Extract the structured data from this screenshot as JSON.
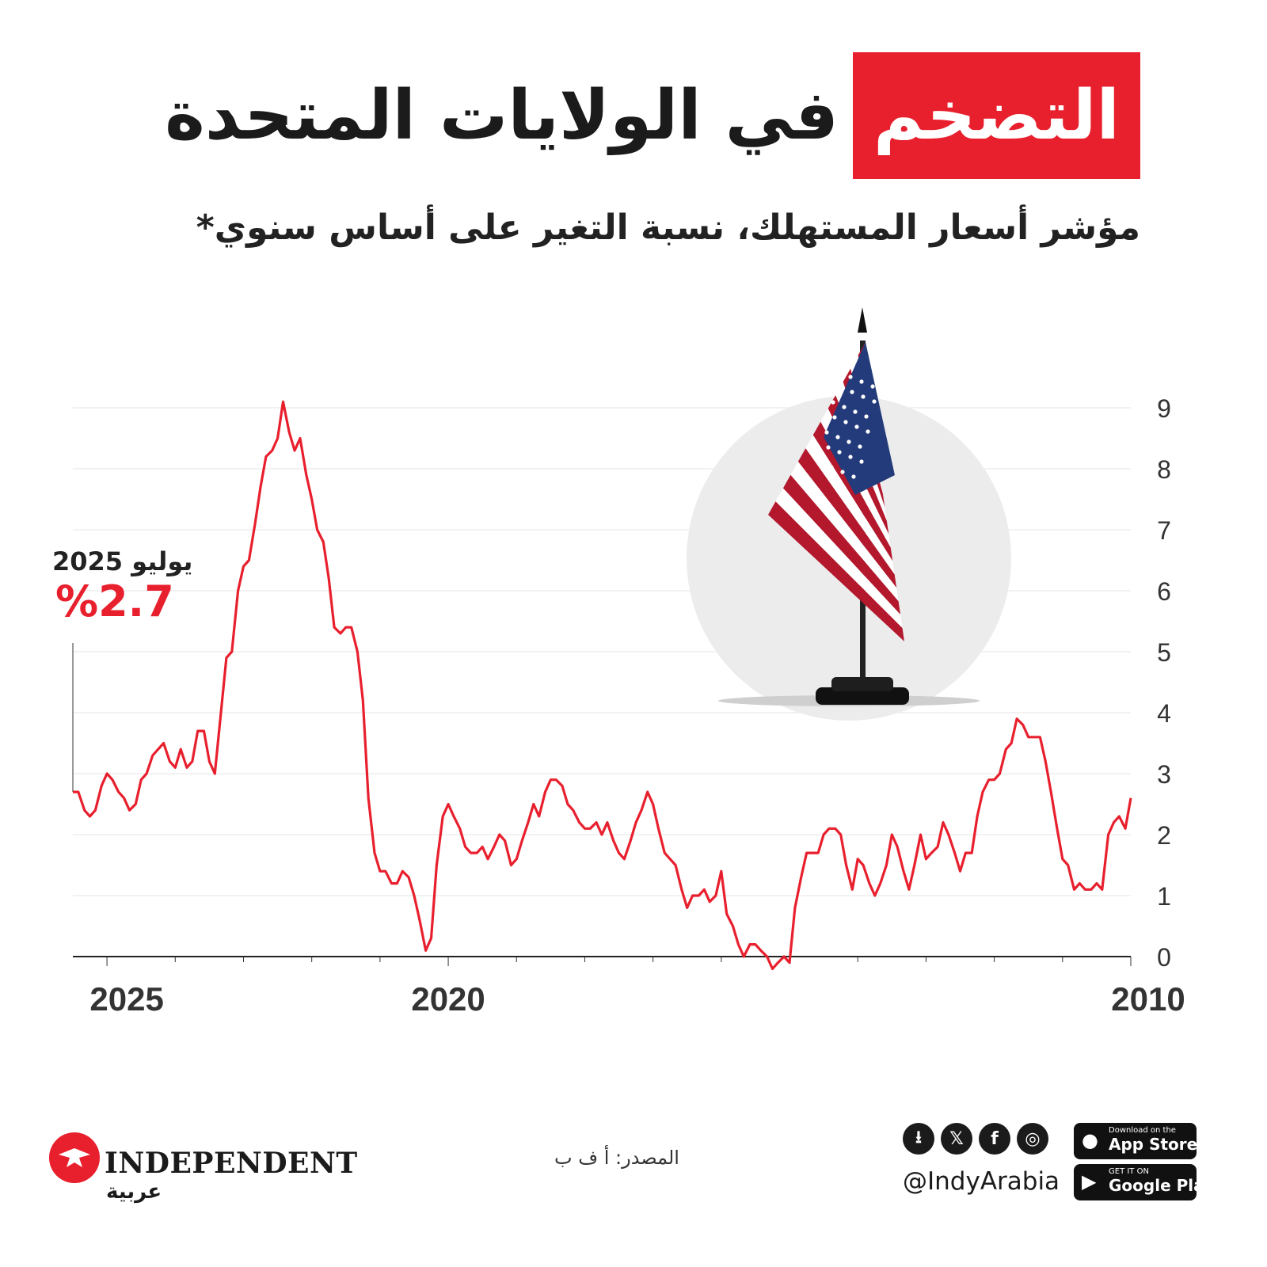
{
  "title": {
    "highlight": "التضخم",
    "rest": "في الولايات المتحدة"
  },
  "subtitle": "مؤشر أسعار المستهلك، نسبة التغير على أساس سنوي*",
  "callout": {
    "date": "يوليو 2025",
    "value": "%2.7"
  },
  "source": "المصدر: أ ف ب",
  "brand": {
    "name": "INDEPENDENT",
    "sub": "عربية"
  },
  "social": {
    "handle": "@IndyArabia",
    "icons": [
      "download-icon",
      "x-icon",
      "facebook-icon",
      "instagram-icon"
    ]
  },
  "stores": {
    "apple_small": "Download on the",
    "apple_large": "App Store",
    "google_small": "GET IT ON",
    "google_large": "Google Play"
  },
  "colors": {
    "accent": "#e8202e",
    "text": "#1b1b1b",
    "grid": "#e6e6e6"
  },
  "chart_data": {
    "type": "line",
    "title": "التضخم في الولايات المتحدة",
    "subtitle": "مؤشر أسعار المستهلك، نسبة التغير على أساس سنوي*",
    "xlabel": "",
    "ylabel": "",
    "x_direction": "right-to-left",
    "xlim": [
      2010.0,
      2025.5
    ],
    "ylim": [
      0,
      9
    ],
    "y_ticks": [
      0,
      1,
      2,
      3,
      4,
      5,
      6,
      7,
      8,
      9
    ],
    "y_axis_position": "right",
    "x_tick_labels": [
      "2025",
      "2020",
      "2010"
    ],
    "x_label_years": [
      2025,
      2020,
      2010
    ],
    "grid": true,
    "series": [
      {
        "name": "",
        "color": "#e8202e",
        "x": [
          2010.0,
          2010.08,
          2010.17,
          2010.25,
          2010.33,
          2010.42,
          2010.5,
          2010.58,
          2010.67,
          2010.75,
          2010.83,
          2010.92,
          2011.0,
          2011.08,
          2011.17,
          2011.25,
          2011.33,
          2011.42,
          2011.5,
          2011.58,
          2011.67,
          2011.75,
          2011.83,
          2011.92,
          2012.0,
          2012.08,
          2012.17,
          2012.25,
          2012.33,
          2012.42,
          2012.5,
          2012.58,
          2012.67,
          2012.75,
          2012.83,
          2012.92,
          2013.0,
          2013.08,
          2013.17,
          2013.25,
          2013.33,
          2013.42,
          2013.5,
          2013.58,
          2013.67,
          2013.75,
          2013.83,
          2013.92,
          2014.0,
          2014.08,
          2014.17,
          2014.25,
          2014.33,
          2014.42,
          2014.5,
          2014.58,
          2014.67,
          2014.75,
          2014.83,
          2014.92,
          2015.0,
          2015.08,
          2015.17,
          2015.25,
          2015.33,
          2015.42,
          2015.5,
          2015.58,
          2015.67,
          2015.75,
          2015.83,
          2015.92,
          2016.0,
          2016.08,
          2016.17,
          2016.25,
          2016.33,
          2016.42,
          2016.5,
          2016.58,
          2016.67,
          2016.75,
          2016.83,
          2016.92,
          2017.0,
          2017.08,
          2017.17,
          2017.25,
          2017.33,
          2017.42,
          2017.5,
          2017.58,
          2017.67,
          2017.75,
          2017.83,
          2017.92,
          2018.0,
          2018.08,
          2018.17,
          2018.25,
          2018.33,
          2018.42,
          2018.5,
          2018.58,
          2018.67,
          2018.75,
          2018.83,
          2018.92,
          2019.0,
          2019.08,
          2019.17,
          2019.25,
          2019.33,
          2019.42,
          2019.5,
          2019.58,
          2019.67,
          2019.75,
          2019.83,
          2019.92,
          2020.0,
          2020.08,
          2020.17,
          2020.25,
          2020.33,
          2020.42,
          2020.5,
          2020.58,
          2020.67,
          2020.75,
          2020.83,
          2020.92,
          2021.0,
          2021.08,
          2021.17,
          2021.25,
          2021.33,
          2021.42,
          2021.5,
          2021.58,
          2021.67,
          2021.75,
          2021.83,
          2021.92,
          2022.0,
          2022.08,
          2022.17,
          2022.25,
          2022.33,
          2022.42,
          2022.5,
          2022.58,
          2022.67,
          2022.75,
          2022.83,
          2022.92,
          2023.0,
          2023.08,
          2023.17,
          2023.25,
          2023.33,
          2023.42,
          2023.5,
          2023.58,
          2023.67,
          2023.75,
          2023.83,
          2023.92,
          2024.0,
          2024.08,
          2024.17,
          2024.25,
          2024.33,
          2024.42,
          2024.5,
          2024.58,
          2024.67,
          2024.75,
          2024.83,
          2024.92,
          2025.0,
          2025.08,
          2025.17,
          2025.25,
          2025.33,
          2025.42,
          2025.5
        ],
        "y": [
          2.6,
          2.1,
          2.3,
          2.2,
          2.0,
          1.1,
          1.2,
          1.1,
          1.1,
          1.2,
          1.1,
          1.5,
          1.6,
          2.1,
          2.7,
          3.2,
          3.6,
          3.6,
          3.6,
          3.8,
          3.9,
          3.5,
          3.4,
          3.0,
          2.9,
          2.9,
          2.7,
          2.3,
          1.7,
          1.7,
          1.4,
          1.7,
          2.0,
          2.2,
          1.8,
          1.7,
          1.6,
          2.0,
          1.5,
          1.1,
          1.4,
          1.8,
          2.0,
          1.5,
          1.2,
          1.0,
          1.2,
          1.5,
          1.6,
          1.1,
          1.5,
          2.0,
          2.1,
          2.1,
          2.0,
          1.7,
          1.7,
          1.7,
          1.3,
          0.8,
          -0.1,
          0.0,
          -0.1,
          -0.2,
          0.0,
          0.1,
          0.2,
          0.2,
          0.0,
          0.2,
          0.5,
          0.7,
          1.4,
          1.0,
          0.9,
          1.1,
          1.0,
          1.0,
          0.8,
          1.1,
          1.5,
          1.6,
          1.7,
          2.1,
          2.5,
          2.7,
          2.4,
          2.2,
          1.9,
          1.6,
          1.7,
          1.9,
          2.2,
          2.0,
          2.2,
          2.1,
          2.1,
          2.2,
          2.4,
          2.5,
          2.8,
          2.9,
          2.9,
          2.7,
          2.3,
          2.5,
          2.2,
          1.9,
          1.6,
          1.5,
          1.9,
          2.0,
          1.8,
          1.6,
          1.8,
          1.7,
          1.7,
          1.8,
          2.1,
          2.3,
          2.5,
          2.3,
          1.5,
          0.3,
          0.1,
          0.6,
          1.0,
          1.3,
          1.4,
          1.2,
          1.2,
          1.4,
          1.4,
          1.7,
          2.6,
          4.2,
          5.0,
          5.4,
          5.4,
          5.3,
          5.4,
          6.2,
          6.8,
          7.0,
          7.5,
          7.9,
          8.5,
          8.3,
          8.6,
          9.1,
          8.5,
          8.3,
          8.2,
          7.7,
          7.1,
          6.5,
          6.4,
          6.0,
          5.0,
          4.9,
          4.0,
          3.0,
          3.2,
          3.7,
          3.7,
          3.2,
          3.1,
          3.4,
          3.1,
          3.2,
          3.5,
          3.4,
          3.3,
          3.0,
          2.9,
          2.5,
          2.4,
          2.6,
          2.7,
          2.9,
          3.0,
          2.8,
          2.4,
          2.3,
          2.4,
          2.7,
          2.7
        ]
      }
    ],
    "annotation": {
      "x": 2025.5,
      "y": 2.7,
      "date_label": "يوليو 2025",
      "value_label": "%2.7"
    }
  }
}
